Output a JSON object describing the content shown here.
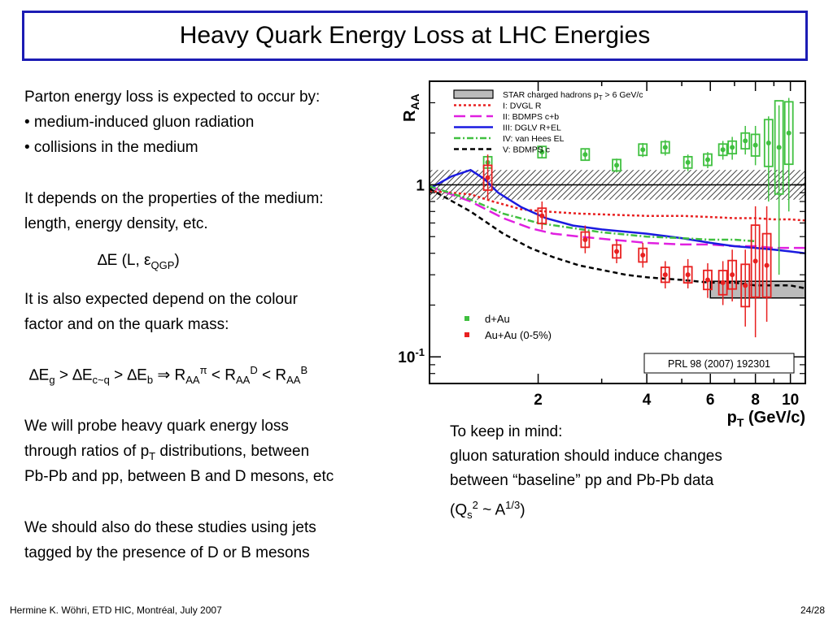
{
  "slide": {
    "title": "Heavy Quark Energy Loss at LHC Energies",
    "intro_line": "Parton energy loss is expected to occur by:",
    "bullets": [
      "• medium-induced gluon radiation",
      "• collisions in the medium"
    ],
    "depends_line1": "It depends on the properties of the medium:",
    "depends_line2": "length, energy density, etc.",
    "formula_de": "∆E (L, ε",
    "formula_de_sub": "QGP",
    "formula_de_close": ")",
    "colour_line1": "It is also expected depend on the colour",
    "colour_line2": "factor and on the quark mass:",
    "hierarchy": {
      "de": "∆E",
      "g": "g",
      "cq": "c~q",
      "b": "b",
      "gt": " > ",
      "implies": "  ⇒  ",
      "raa": "R",
      "aa": "AA",
      "pi": "π",
      "d": "D",
      "bsup": "B",
      "lt": " < "
    },
    "probe_line1": "We will probe heavy quark energy loss",
    "probe_line2a": "through ratios of p",
    "probe_line2sub": "T",
    "probe_line2b": " distributions, between",
    "probe_line3": "Pb-Pb and pp, between B and D mesons, etc",
    "jets_line1": "We should also do these studies using jets",
    "jets_line2": "tagged by the presence of D or B mesons",
    "keep_line1": "To keep in mind:",
    "keep_line2": "gluon saturation should induce changes",
    "keep_line3": "between “baseline” pp and Pb-Pb data",
    "keep_q_open": "(Q",
    "keep_q_sub": "s",
    "keep_q_sup": "2",
    "keep_q_mid": " ~ A",
    "keep_q_sup2": "1/3",
    "keep_q_close": ")",
    "footer_left": "Hermine K. Wöhri, ETD HIC, Montréal, July 2007",
    "footer_right": "24/28"
  },
  "chart_data": {
    "type": "scatter",
    "title": "",
    "xlabel": "p",
    "xlabel_sub": "T",
    "xlabel_units": " (GeV/c)",
    "ylabel": "R",
    "ylabel_sub": "AA",
    "y_scale": "log",
    "x_scale": "log",
    "xlim": [
      1.0,
      11.0
    ],
    "ylim": [
      0.07,
      4.0
    ],
    "x_ticks": [
      2,
      4,
      6,
      8,
      10
    ],
    "y_ticks": [
      {
        "value": 1,
        "label": "1",
        "sup": ""
      },
      {
        "value": 0.1,
        "label": "10",
        "sup": "-1"
      }
    ],
    "reference": "PRL 98 (2007) 192301",
    "legend_curves": [
      {
        "label": "STAR charged hadrons p",
        "sub": "T",
        "rest": " > 6 GeV/c",
        "style": "band",
        "color": "#000000"
      },
      {
        "label": "I: DVGL R",
        "sub": "",
        "rest": "",
        "style": "dotted",
        "color": "#e82020"
      },
      {
        "label": "II: BDMPS c+b",
        "sub": "",
        "rest": "",
        "style": "longdash",
        "color": "#e020e0"
      },
      {
        "label": "III: DGLV R+EL",
        "sub": "",
        "rest": "",
        "style": "solid",
        "color": "#1a1ae0"
      },
      {
        "label": "IV: van Hees EL",
        "sub": "",
        "rest": "",
        "style": "dashdot",
        "color": "#40c040"
      },
      {
        "label": "V: BDMPS c",
        "sub": "",
        "rest": "",
        "style": "dashed",
        "color": "#000000"
      }
    ],
    "legend_points": [
      {
        "label": "d+Au",
        "color": "#40c040"
      },
      {
        "label": "Au+Au (0-5%)",
        "color": "#e82020"
      }
    ],
    "series": [
      {
        "name": "d+Au",
        "color": "#40c040",
        "points": [
          {
            "x": 1.45,
            "y": 1.35,
            "lo": 1.25,
            "hi": 1.45
          },
          {
            "x": 2.05,
            "y": 1.55,
            "lo": 1.43,
            "hi": 1.67
          },
          {
            "x": 2.7,
            "y": 1.5,
            "lo": 1.38,
            "hi": 1.62
          },
          {
            "x": 3.3,
            "y": 1.3,
            "lo": 1.18,
            "hi": 1.42
          },
          {
            "x": 3.9,
            "y": 1.6,
            "lo": 1.45,
            "hi": 1.75
          },
          {
            "x": 4.5,
            "y": 1.65,
            "lo": 1.48,
            "hi": 1.82
          },
          {
            "x": 5.2,
            "y": 1.35,
            "lo": 1.2,
            "hi": 1.5
          },
          {
            "x": 5.9,
            "y": 1.4,
            "lo": 1.25,
            "hi": 1.55
          },
          {
            "x": 6.5,
            "y": 1.6,
            "lo": 1.4,
            "hi": 1.8
          },
          {
            "x": 6.9,
            "y": 1.65,
            "lo": 1.4,
            "hi": 1.9
          },
          {
            "x": 7.5,
            "y": 1.8,
            "lo": 1.5,
            "hi": 2.2
          },
          {
            "x": 8.0,
            "y": 1.7,
            "lo": 1.3,
            "hi": 2.2
          },
          {
            "x": 8.7,
            "y": 1.75,
            "lo": 0.8,
            "hi": 2.5
          },
          {
            "x": 9.3,
            "y": 1.65,
            "lo": 0.3,
            "hi": 2.9
          },
          {
            "x": 9.9,
            "y": 2.0,
            "lo": 0.7,
            "hi": 3.2
          }
        ]
      },
      {
        "name": "Au+Au (0-5%)",
        "color": "#e82020",
        "points": [
          {
            "x": 1.45,
            "y": 1.1,
            "lo": 0.82,
            "hi": 1.5
          },
          {
            "x": 2.05,
            "y": 0.66,
            "lo": 0.55,
            "hi": 0.8
          },
          {
            "x": 2.7,
            "y": 0.48,
            "lo": 0.4,
            "hi": 0.58
          },
          {
            "x": 3.3,
            "y": 0.41,
            "lo": 0.35,
            "hi": 0.48
          },
          {
            "x": 3.9,
            "y": 0.39,
            "lo": 0.33,
            "hi": 0.46
          },
          {
            "x": 4.5,
            "y": 0.3,
            "lo": 0.25,
            "hi": 0.36
          },
          {
            "x": 5.2,
            "y": 0.3,
            "lo": 0.25,
            "hi": 0.37
          },
          {
            "x": 5.9,
            "y": 0.28,
            "lo": 0.22,
            "hi": 0.35
          },
          {
            "x": 6.5,
            "y": 0.27,
            "lo": 0.2,
            "hi": 0.36
          },
          {
            "x": 6.9,
            "y": 0.3,
            "lo": 0.21,
            "hi": 0.42
          },
          {
            "x": 7.5,
            "y": 0.26,
            "lo": 0.15,
            "hi": 0.42
          },
          {
            "x": 8.0,
            "y": 0.36,
            "lo": 0.13,
            "hi": 0.75
          },
          {
            "x": 8.6,
            "y": 0.34,
            "lo": 0.16,
            "hi": 0.75
          }
        ]
      }
    ],
    "curves": [
      {
        "name": "I: DVGL R",
        "color": "#e82020",
        "style": "dotted",
        "x": [
          1.0,
          1.3,
          1.5,
          1.8,
          2.1,
          2.6,
          3.2,
          4.0,
          5.0,
          6.0,
          7.0,
          8.0,
          9.0,
          10.0,
          11.0
        ],
        "y": [
          0.92,
          0.88,
          0.8,
          0.72,
          0.7,
          0.68,
          0.67,
          0.66,
          0.66,
          0.65,
          0.64,
          0.64,
          0.63,
          0.63,
          0.62
        ]
      },
      {
        "name": "II: BDMPS c+b",
        "color": "#e020e0",
        "style": "longdash",
        "x": [
          1.0,
          1.3,
          1.6,
          1.9,
          2.2,
          2.6,
          3.2,
          4.0,
          5.0,
          6.0,
          7.0,
          8.0,
          9.0,
          10.0,
          11.0
        ],
        "y": [
          0.98,
          0.8,
          0.64,
          0.56,
          0.52,
          0.5,
          0.48,
          0.46,
          0.45,
          0.45,
          0.44,
          0.44,
          0.43,
          0.43,
          0.43
        ]
      },
      {
        "name": "III: DGLV R+EL",
        "color": "#1a1ae0",
        "style": "solid",
        "x": [
          1.0,
          1.15,
          1.3,
          1.42,
          1.55,
          1.8,
          2.1,
          2.5,
          3.0,
          4.0,
          5.0,
          6.0,
          7.0,
          8.0,
          9.0,
          10.0,
          11.0
        ],
        "y": [
          0.95,
          1.12,
          1.22,
          1.08,
          0.9,
          0.74,
          0.64,
          0.58,
          0.55,
          0.52,
          0.49,
          0.46,
          0.44,
          0.43,
          0.42,
          0.41,
          0.4
        ]
      },
      {
        "name": "IV: van Hees EL",
        "color": "#40c040",
        "style": "dashdot",
        "x": [
          1.0,
          1.3,
          1.6,
          2.0,
          2.5,
          3.0,
          4.0,
          5.0,
          6.0,
          7.0,
          8.0
        ],
        "y": [
          0.98,
          0.82,
          0.68,
          0.6,
          0.56,
          0.53,
          0.5,
          0.49,
          0.48,
          0.48,
          0.47
        ]
      },
      {
        "name": "V: BDMPS c",
        "color": "#000000",
        "style": "dashed",
        "x": [
          1.0,
          1.3,
          1.6,
          1.9,
          2.2,
          2.6,
          3.0,
          3.5,
          4.0,
          5.0,
          6.0,
          7.0,
          8.0,
          9.0,
          10.0,
          11.0
        ],
        "y": [
          0.95,
          0.7,
          0.52,
          0.43,
          0.38,
          0.34,
          0.32,
          0.3,
          0.29,
          0.28,
          0.27,
          0.27,
          0.26,
          0.26,
          0.26,
          0.25
        ]
      }
    ],
    "bands": [
      {
        "name": "STAR charged hadrons",
        "x_range": [
          1.0,
          11.0
        ],
        "y_range": [
          0.82,
          1.22
        ],
        "fill": "hatched",
        "center": 1.0
      },
      {
        "name": "STAR charged hadrons p_T > 6 GeV/c",
        "x_range": [
          6.0,
          11.0
        ],
        "y_range": [
          0.22,
          0.275
        ],
        "fill": "gray"
      }
    ]
  }
}
